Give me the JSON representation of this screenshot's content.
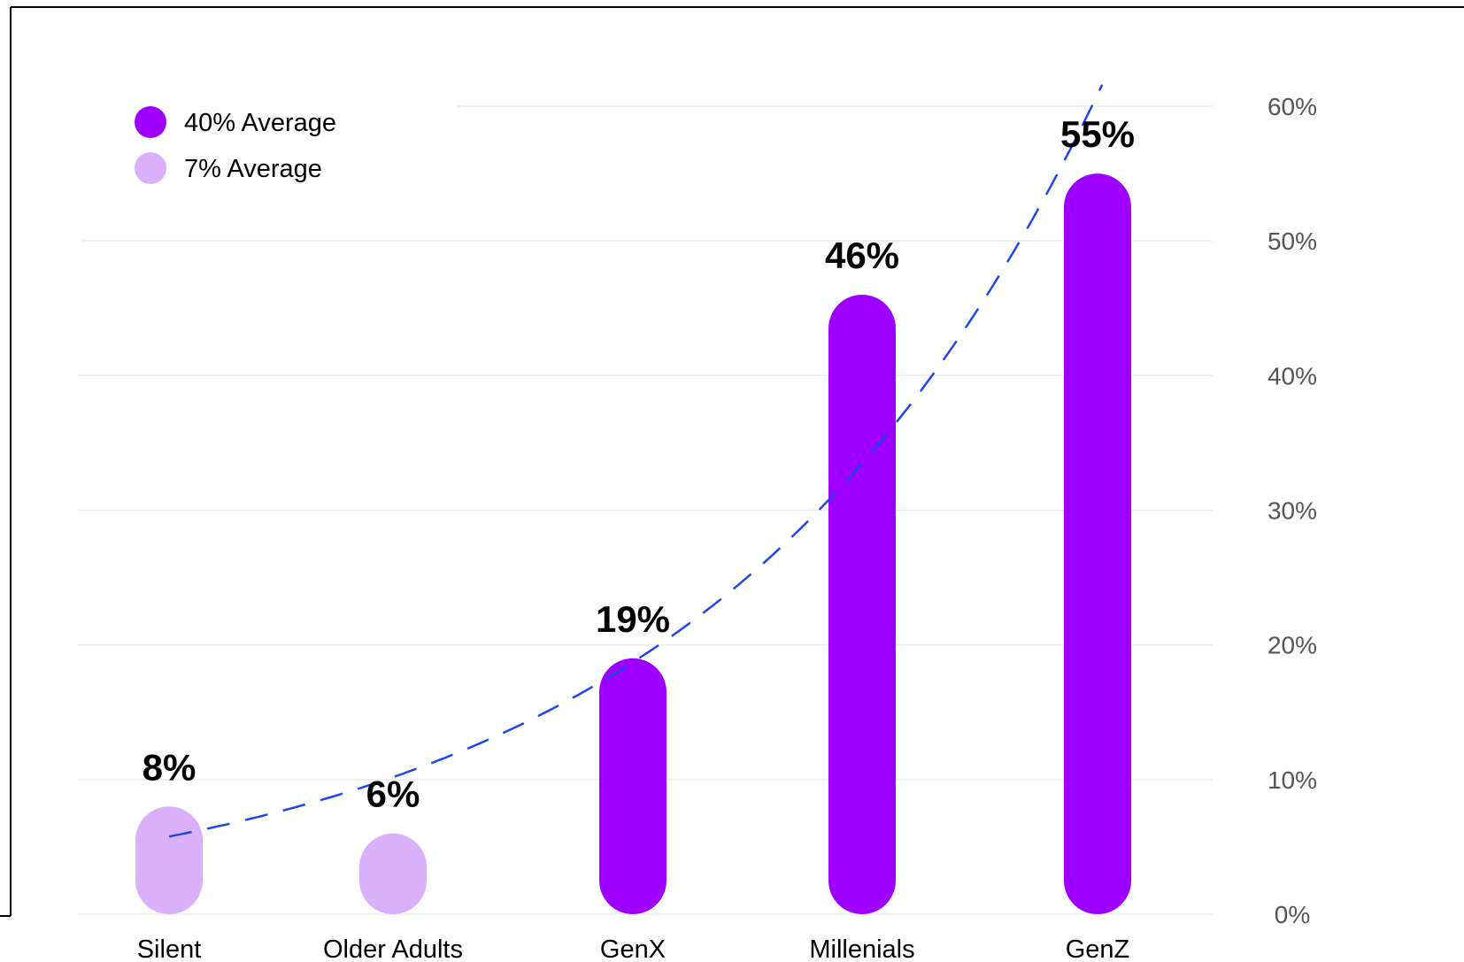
{
  "chart_data": {
    "type": "bar",
    "categories": [
      "Silent",
      "Older Adults",
      "GenX",
      "Millenials",
      "GenZ"
    ],
    "values": [
      8,
      6,
      19,
      46,
      55
    ],
    "value_labels": [
      "8%",
      "6%",
      "19%",
      "46%",
      "55%"
    ],
    "bar_groups": [
      "7% Average",
      "7% Average",
      "40% Average",
      "40% Average",
      "40% Average"
    ],
    "ylim": [
      0,
      60
    ],
    "yticks": [
      0,
      10,
      20,
      30,
      40,
      50,
      60
    ],
    "ytick_labels": [
      "0%",
      "10%",
      "20%",
      "30%",
      "40%",
      "50%",
      "60%"
    ],
    "y_axis_side": "right",
    "grid": true,
    "legend_position": "top-left",
    "legend": [
      {
        "label": "40% Average",
        "color": "#9D00FF"
      },
      {
        "label": "7% Average",
        "color": "#DAB0FB"
      }
    ],
    "trendline": {
      "style": "dashed",
      "color": "#1E48E6",
      "type": "exponential"
    },
    "colors": {
      "high": "#9D00FF",
      "low": "#DAB0FB",
      "grid": "#EBEBEB",
      "frame": "#000000"
    }
  }
}
